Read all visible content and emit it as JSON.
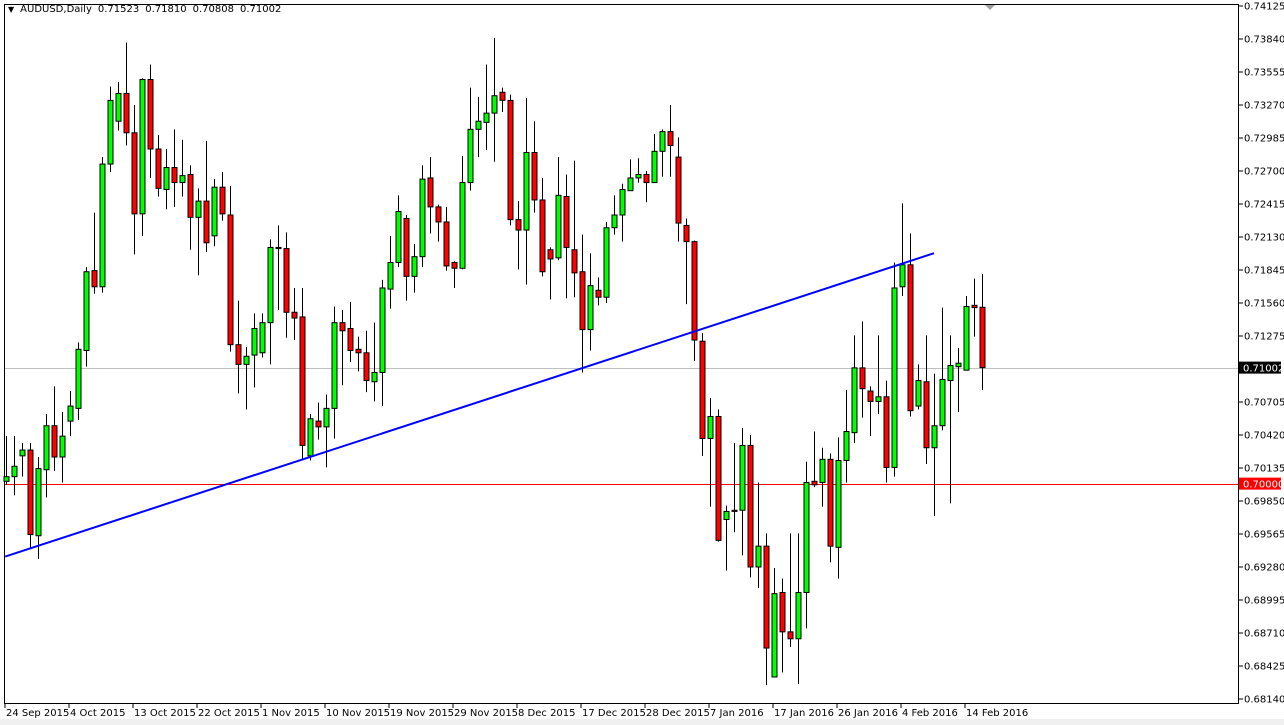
{
  "header": {
    "symbol_timeframe": "AUDUSD,Daily",
    "open": "0.71523",
    "high": "0.71810",
    "low": "0.70808",
    "close": "0.71002"
  },
  "colors": {
    "up": "#00ff00",
    "down": "#ff0000",
    "trendline": "#0000ff",
    "level_line": "#ff0000",
    "bid_line": "#c0c0c0"
  },
  "chart_data": {
    "type": "candlestick",
    "title": "AUDUSD,Daily",
    "ylim": [
      0.6814,
      0.74125
    ],
    "grid": false,
    "y_ticks": [
      "0.74125",
      "0.73840",
      "0.73555",
      "0.73270",
      "0.72985",
      "0.72700",
      "0.72415",
      "0.72130",
      "0.71845",
      "0.71560",
      "0.71275",
      "0.70705",
      "0.70420",
      "0.70135",
      "0.69850",
      "0.69565",
      "0.69280",
      "0.68995",
      "0.68710",
      "0.68425",
      "0.68140"
    ],
    "x_ticks": [
      {
        "bar": 0,
        "label": "24 Sep 2015"
      },
      {
        "bar": 8,
        "label": "4 Oct 2015"
      },
      {
        "bar": 16,
        "label": "13 Oct 2015"
      },
      {
        "bar": 24,
        "label": "22 Oct 2015"
      },
      {
        "bar": 32,
        "label": "1 Nov 2015"
      },
      {
        "bar": 40,
        "label": "10 Nov 2015"
      },
      {
        "bar": 48,
        "label": "19 Nov 2015"
      },
      {
        "bar": 56,
        "label": "29 Nov 2015"
      },
      {
        "bar": 64,
        "label": "8 Dec 2015"
      },
      {
        "bar": 72,
        "label": "17 Dec 2015"
      },
      {
        "bar": 80,
        "label": "28 Dec 2015"
      },
      {
        "bar": 88,
        "label": "7 Jan 2016"
      },
      {
        "bar": 96,
        "label": "17 Jan 2016"
      },
      {
        "bar": 104,
        "label": "26 Jan 2016"
      },
      {
        "bar": 112,
        "label": "4 Feb 2016"
      },
      {
        "bar": 120,
        "label": "14 Feb 2016"
      }
    ],
    "price_labels": {
      "bid": "0.71002",
      "level": "0.70000"
    },
    "horizontal_lines": [
      {
        "price": 0.71002,
        "kind": "bid"
      },
      {
        "price": 0.7,
        "kind": "level"
      }
    ],
    "trendline": {
      "start": {
        "bar": -0.1,
        "price": 0.6937
      },
      "end": {
        "bar": 116,
        "price": 0.7199
      }
    },
    "ohlc": [
      [
        0.7002,
        0.7041,
        0.6999,
        0.7006
      ],
      [
        0.7006,
        0.7041,
        0.699,
        0.7015
      ],
      [
        0.7024,
        0.7035,
        0.7006,
        0.7029
      ],
      [
        0.7029,
        0.7035,
        0.6944,
        0.6956
      ],
      [
        0.6955,
        0.7023,
        0.6935,
        0.7013
      ],
      [
        0.7012,
        0.706,
        0.6988,
        0.705
      ],
      [
        0.705,
        0.7084,
        0.7011,
        0.7023
      ],
      [
        0.7023,
        0.7062,
        0.7001,
        0.7041
      ],
      [
        0.7054,
        0.708,
        0.7041,
        0.7067
      ],
      [
        0.7065,
        0.7122,
        0.7055,
        0.7116
      ],
      [
        0.7115,
        0.7187,
        0.7101,
        0.7183
      ],
      [
        0.7184,
        0.7234,
        0.7164,
        0.717
      ],
      [
        0.717,
        0.7282,
        0.7165,
        0.7276
      ],
      [
        0.7276,
        0.7343,
        0.7269,
        0.7331
      ],
      [
        0.7313,
        0.7347,
        0.7305,
        0.7337
      ],
      [
        0.7337,
        0.7381,
        0.7292,
        0.7303
      ],
      [
        0.7303,
        0.7327,
        0.7198,
        0.7233
      ],
      [
        0.7233,
        0.735,
        0.7214,
        0.7349
      ],
      [
        0.7349,
        0.7362,
        0.7264,
        0.7289
      ],
      [
        0.7289,
        0.7301,
        0.7248,
        0.7255
      ],
      [
        0.7254,
        0.7289,
        0.7237,
        0.7273
      ],
      [
        0.7273,
        0.7306,
        0.7239,
        0.726
      ],
      [
        0.726,
        0.7297,
        0.7248,
        0.7266
      ],
      [
        0.7267,
        0.7275,
        0.7202,
        0.723
      ],
      [
        0.723,
        0.7255,
        0.718,
        0.7244
      ],
      [
        0.7244,
        0.7296,
        0.72,
        0.7208
      ],
      [
        0.7214,
        0.7263,
        0.7205,
        0.7256
      ],
      [
        0.7256,
        0.7269,
        0.7227,
        0.7233
      ],
      [
        0.7232,
        0.7257,
        0.7114,
        0.712
      ],
      [
        0.712,
        0.7158,
        0.7078,
        0.7103
      ],
      [
        0.7103,
        0.7118,
        0.7064,
        0.711
      ],
      [
        0.7111,
        0.7147,
        0.7083,
        0.7134
      ],
      [
        0.7113,
        0.7147,
        0.7109,
        0.7139
      ],
      [
        0.7139,
        0.7211,
        0.7103,
        0.7204
      ],
      [
        0.7204,
        0.7223,
        0.715,
        0.7203
      ],
      [
        0.7203,
        0.7217,
        0.7126,
        0.7148
      ],
      [
        0.7148,
        0.7169,
        0.7124,
        0.7143
      ],
      [
        0.7144,
        0.7169,
        0.702,
        0.7033
      ],
      [
        0.7024,
        0.706,
        0.702,
        0.7056
      ],
      [
        0.7054,
        0.707,
        0.7038,
        0.7049
      ],
      [
        0.7049,
        0.7077,
        0.7014,
        0.7065
      ],
      [
        0.7065,
        0.7153,
        0.7039,
        0.7139
      ],
      [
        0.7139,
        0.715,
        0.7085,
        0.7132
      ],
      [
        0.7134,
        0.7157,
        0.7105,
        0.7115
      ],
      [
        0.7116,
        0.7127,
        0.7097,
        0.7113
      ],
      [
        0.7113,
        0.7132,
        0.7079,
        0.7089
      ],
      [
        0.7088,
        0.7139,
        0.7071,
        0.7096
      ],
      [
        0.7096,
        0.7176,
        0.7067,
        0.7169
      ],
      [
        0.7168,
        0.7214,
        0.7151,
        0.7191
      ],
      [
        0.7191,
        0.7249,
        0.7187,
        0.7235
      ],
      [
        0.7229,
        0.7232,
        0.7158,
        0.7179
      ],
      [
        0.7179,
        0.7207,
        0.7165,
        0.7196
      ],
      [
        0.7196,
        0.7275,
        0.7187,
        0.7263
      ],
      [
        0.7264,
        0.7282,
        0.7216,
        0.7239
      ],
      [
        0.7239,
        0.7241,
        0.7209,
        0.7226
      ],
      [
        0.7226,
        0.7239,
        0.7184,
        0.7188
      ],
      [
        0.7191,
        0.7192,
        0.7169,
        0.7186
      ],
      [
        0.7186,
        0.7283,
        0.7185,
        0.726
      ],
      [
        0.726,
        0.7342,
        0.7253,
        0.7306
      ],
      [
        0.7306,
        0.7334,
        0.7282,
        0.7313
      ],
      [
        0.7312,
        0.7362,
        0.7288,
        0.732
      ],
      [
        0.732,
        0.7385,
        0.7278,
        0.7335
      ],
      [
        0.7338,
        0.7342,
        0.7321,
        0.7331
      ],
      [
        0.7331,
        0.7336,
        0.7223,
        0.7228
      ],
      [
        0.7228,
        0.7244,
        0.7185,
        0.7219
      ],
      [
        0.7219,
        0.7333,
        0.7172,
        0.7286
      ],
      [
        0.7286,
        0.7313,
        0.7234,
        0.7245
      ],
      [
        0.7245,
        0.7264,
        0.7179,
        0.7183
      ],
      [
        0.7202,
        0.7204,
        0.7159,
        0.7194
      ],
      [
        0.7195,
        0.7282,
        0.7193,
        0.7249
      ],
      [
        0.7248,
        0.7267,
        0.716,
        0.7204
      ],
      [
        0.7202,
        0.7279,
        0.7161,
        0.7182
      ],
      [
        0.7183,
        0.7215,
        0.7096,
        0.7133
      ],
      [
        0.7133,
        0.7199,
        0.7115,
        0.7171
      ],
      [
        0.7167,
        0.7178,
        0.7154,
        0.7161
      ],
      [
        0.7161,
        0.7226,
        0.7156,
        0.7221
      ],
      [
        0.7221,
        0.7249,
        0.7215,
        0.7232
      ],
      [
        0.7232,
        0.7259,
        0.7209,
        0.7254
      ],
      [
        0.7253,
        0.728,
        0.7253,
        0.7264
      ],
      [
        0.7264,
        0.7281,
        0.726,
        0.7267
      ],
      [
        0.7267,
        0.727,
        0.7243,
        0.726
      ],
      [
        0.726,
        0.7302,
        0.726,
        0.7287
      ],
      [
        0.7287,
        0.7306,
        0.7265,
        0.7304
      ],
      [
        0.7304,
        0.7327,
        0.7265,
        0.7292
      ],
      [
        0.7282,
        0.7299,
        0.7209,
        0.7225
      ],
      [
        0.7223,
        0.7229,
        0.7155,
        0.7209
      ],
      [
        0.7209,
        0.721,
        0.7106,
        0.7124
      ],
      [
        0.7123,
        0.713,
        0.7024,
        0.7039
      ],
      [
        0.7039,
        0.7074,
        0.698,
        0.7058
      ],
      [
        0.7058,
        0.7064,
        0.695,
        0.6951
      ],
      [
        0.6969,
        0.6981,
        0.6925,
        0.6976
      ],
      [
        0.6977,
        0.7035,
        0.6958,
        0.6976
      ],
      [
        0.6977,
        0.7048,
        0.6938,
        0.7033
      ],
      [
        0.7033,
        0.7042,
        0.6919,
        0.6928
      ],
      [
        0.6928,
        0.7001,
        0.691,
        0.6946
      ],
      [
        0.6946,
        0.6957,
        0.6826,
        0.6858
      ],
      [
        0.6833,
        0.6927,
        0.6833,
        0.6905
      ],
      [
        0.6906,
        0.6918,
        0.6837,
        0.6872
      ],
      [
        0.6872,
        0.6957,
        0.6859,
        0.6866
      ],
      [
        0.6866,
        0.6957,
        0.6827,
        0.6906
      ],
      [
        0.6906,
        0.7019,
        0.6875,
        0.7001
      ],
      [
        0.7002,
        0.7045,
        0.6997,
        0.6999
      ],
      [
        0.7001,
        0.7031,
        0.698,
        0.7021
      ],
      [
        0.7021,
        0.7026,
        0.6932,
        0.6946
      ],
      [
        0.6945,
        0.704,
        0.6918,
        0.702
      ],
      [
        0.702,
        0.7081,
        0.7001,
        0.7045
      ],
      [
        0.7044,
        0.7128,
        0.7035,
        0.71
      ],
      [
        0.71,
        0.714,
        0.7057,
        0.7082
      ],
      [
        0.708,
        0.7084,
        0.7041,
        0.7071
      ],
      [
        0.7071,
        0.7128,
        0.706,
        0.7075
      ],
      [
        0.7075,
        0.7089,
        0.7001,
        0.7014
      ],
      [
        0.7014,
        0.7191,
        0.7006,
        0.7169
      ],
      [
        0.717,
        0.7242,
        0.7162,
        0.7189
      ],
      [
        0.7189,
        0.7216,
        0.7058,
        0.7063
      ],
      [
        0.7067,
        0.7103,
        0.7064,
        0.7089
      ],
      [
        0.7088,
        0.7128,
        0.7017,
        0.7031
      ],
      [
        0.7031,
        0.7095,
        0.6972,
        0.705
      ],
      [
        0.705,
        0.7152,
        0.7046,
        0.709
      ],
      [
        0.7089,
        0.7128,
        0.6983,
        0.7102
      ],
      [
        0.7101,
        0.7117,
        0.7062,
        0.7104
      ],
      [
        0.7098,
        0.7162,
        0.7098,
        0.7153
      ],
      [
        0.7154,
        0.7177,
        0.7127,
        0.7152
      ],
      [
        0.71523,
        0.7181,
        0.70808,
        0.71002
      ]
    ]
  }
}
